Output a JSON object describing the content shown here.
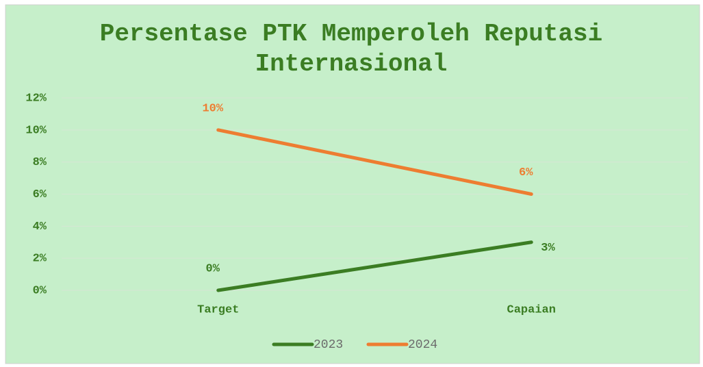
{
  "chart_data": {
    "type": "line",
    "title": "Persentase PTK Memperoleh Reputasi Internasional",
    "categories": [
      "Target",
      "Capaian"
    ],
    "series": [
      {
        "name": "2023",
        "color": "#3b7d23",
        "values": [
          0,
          3
        ],
        "value_labels": [
          "0%",
          "3%"
        ]
      },
      {
        "name": "2024",
        "color": "#ed7d31",
        "values": [
          10,
          6
        ],
        "value_labels": [
          "10%",
          "6%"
        ]
      }
    ],
    "ylim": [
      0,
      12
    ],
    "yticks": [
      {
        "value": 0,
        "label": "0%"
      },
      {
        "value": 2,
        "label": "2%"
      },
      {
        "value": 4,
        "label": "4%"
      },
      {
        "value": 6,
        "label": "6%"
      },
      {
        "value": 8,
        "label": "8%"
      },
      {
        "value": 10,
        "label": "10%"
      },
      {
        "value": 12,
        "label": "12%"
      }
    ],
    "grid": true,
    "legend": "bottom"
  }
}
